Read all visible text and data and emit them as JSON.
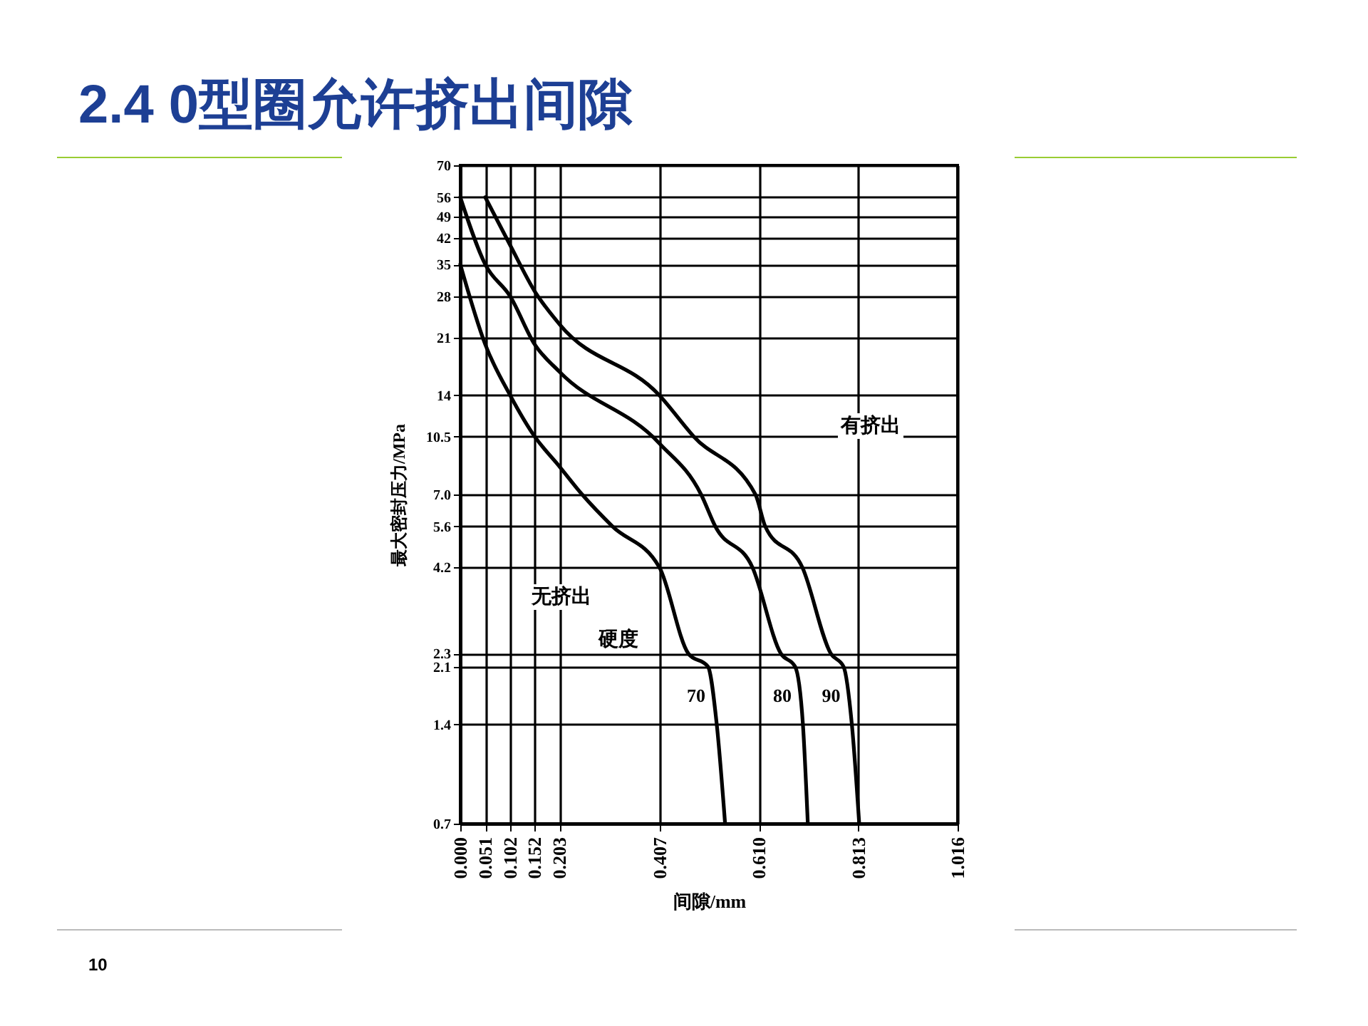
{
  "chart_data": {
    "type": "line",
    "title": "2.4 0型圈允许挤出间隙",
    "xlabel": "间隙/mm",
    "ylabel": "最大密封压力/MPa",
    "xlim": [
      0,
      1.016
    ],
    "xticks": [
      {
        "value": 0,
        "label": "0.000"
      },
      0.051,
      0.102,
      0.152,
      0.203,
      0.407,
      {
        "value": 0.61,
        "label": "0.610"
      },
      0.813,
      1.016
    ],
    "ylim": [
      0.7,
      70
    ],
    "yticks": [
      0.7,
      1.4,
      2.1,
      2.3,
      4.2,
      5.6,
      {
        "value": 7,
        "label": "7.0"
      },
      10.5,
      14,
      21,
      28,
      35,
      42,
      49,
      56,
      70
    ],
    "log": true,
    "grid": true,
    "series": [
      {
        "name": "70",
        "color": "#000000",
        "x": [
          0,
          0.051,
          0.102,
          0.152,
          0.203,
          0.249,
          0.311,
          0.407,
          0.466,
          0.506,
          0.524,
          0.541
        ],
        "values": [
          35,
          20,
          14,
          10.5,
          8.5,
          7,
          5.6,
          4.2,
          2.3,
          2.1,
          1.4,
          0.7
        ]
      },
      {
        "name": "80",
        "color": "#000000",
        "x": [
          0,
          0.051,
          0.102,
          0.152,
          0.203,
          0.407,
          0.492,
          0.521,
          0.597,
          0.655,
          0.684,
          0.7,
          0.71
        ],
        "values": [
          56,
          35,
          28,
          20,
          16.5,
          10,
          7,
          5.6,
          4.2,
          2.3,
          2.1,
          1.4,
          0.7
        ]
      },
      {
        "name": "90",
        "color": "#000000",
        "x": [
          0.051,
          0.102,
          0.152,
          0.203,
          0.407,
          0.477,
          0.603,
          0.623,
          0.699,
          0.757,
          0.783,
          0.8,
          0.815
        ],
        "values": [
          56,
          40,
          29,
          23,
          14,
          10.5,
          7,
          5.6,
          4.2,
          2.3,
          2.1,
          1.4,
          0.7
        ]
      }
    ],
    "annotations": [
      "有挤出",
      "无挤出",
      "硬度",
      "10"
    ]
  }
}
